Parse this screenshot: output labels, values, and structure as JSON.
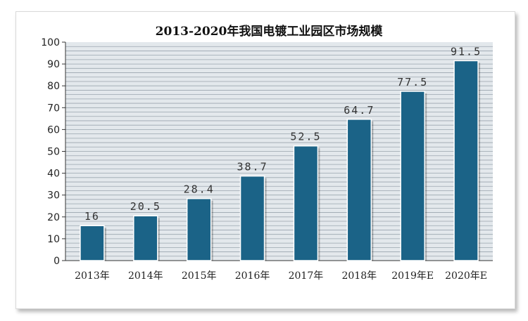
{
  "chart_data": {
    "type": "bar",
    "title": "2013-2020年我国电镀工业园区市场规模",
    "categories": [
      "2013年",
      "2014年",
      "2015年",
      "2016年",
      "2017年",
      "2018年",
      "2019年E",
      "2020年E"
    ],
    "values": [
      16,
      20.5,
      28.4,
      38.7,
      52.5,
      64.7,
      77.5,
      91.5
    ],
    "data_labels": [
      "16",
      "20.5",
      "28.4",
      "38.7",
      "52.5",
      "64.7",
      "77.5",
      "91.5"
    ],
    "ylim": [
      0,
      100
    ],
    "yticks": [
      "0",
      "10",
      "20",
      "30",
      "40",
      "50",
      "60",
      "70",
      "80",
      "90",
      "100"
    ],
    "xlabel": "",
    "ylabel": "",
    "grid": true,
    "bar_color": "#1b6387",
    "plot_background": "#e3e8ec",
    "grid_color": "#9aa5ae"
  }
}
